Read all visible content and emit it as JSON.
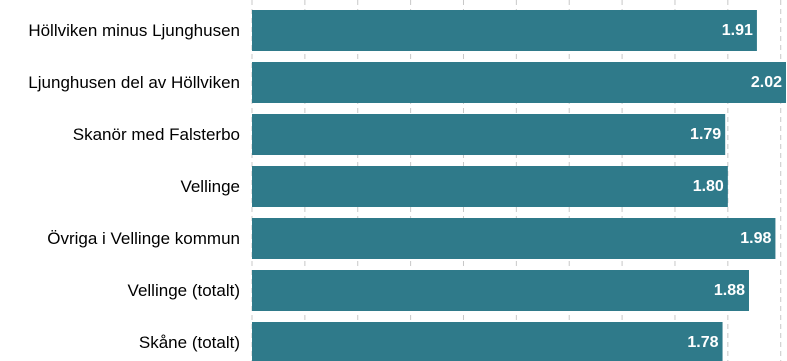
{
  "chart_data": {
    "type": "bar",
    "orientation": "horizontal",
    "categories": [
      "Höllviken minus Ljunghusen",
      "Ljunghusen del av Höllviken",
      "Skanör med Falsterbo",
      "Vellinge",
      "Övriga i Vellinge kommun",
      "Vellinge (totalt)",
      "Skåne (totalt)"
    ],
    "values": [
      1.91,
      2.02,
      1.79,
      1.8,
      1.98,
      1.88,
      1.78
    ],
    "value_labels": [
      "1.91",
      "2.02",
      "1.79",
      "1.80",
      "1.98",
      "1.88",
      "1.78"
    ],
    "title": "",
    "xlabel": "",
    "ylabel": "",
    "xlim": [
      0,
      2.02
    ],
    "grid": true,
    "legend": "none",
    "bar_color": "#2f7a8a",
    "grid_color": "#c8c8c8",
    "label_color": "#ffffff"
  }
}
